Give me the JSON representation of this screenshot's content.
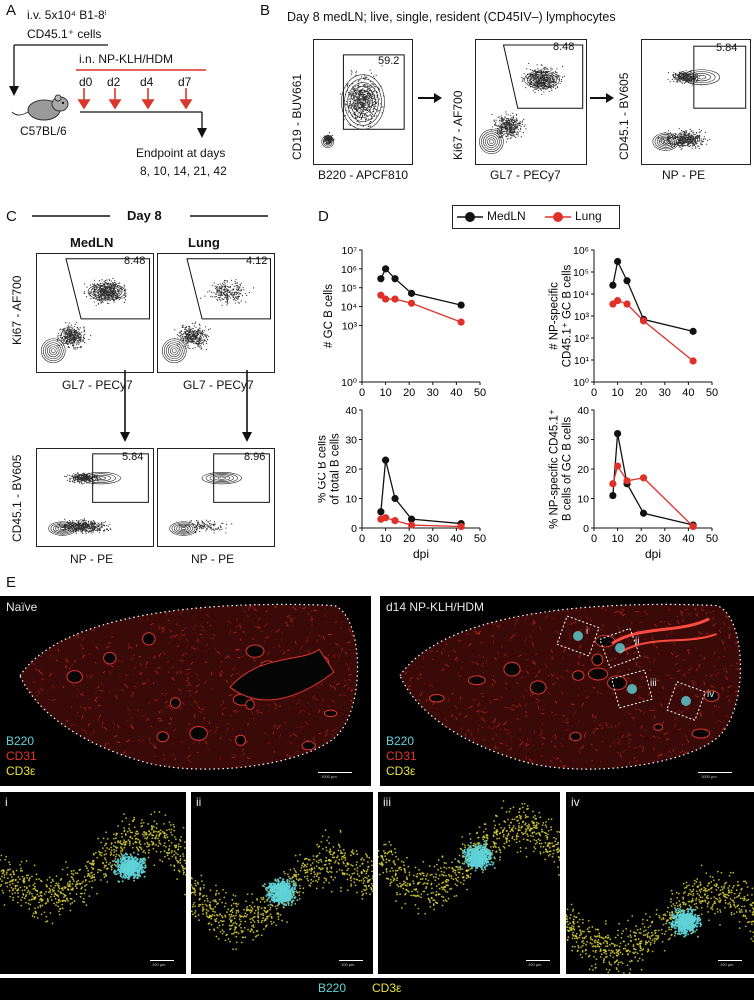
{
  "panels": {
    "a": "A",
    "b": "B",
    "c": "C",
    "d": "D",
    "e": "E"
  },
  "panel_a": {
    "iv_line1": "i.v. 5x10⁴ B1-8ⁱ",
    "iv_line2": "CD45.1⁺ cells",
    "in_label": "i.n. NP-KLH/HDM",
    "days": [
      "d0",
      "d2",
      "d4",
      "d7"
    ],
    "mouse": "C57BL/6",
    "endpoint1": "Endpoint at days",
    "endpoint2": "8, 10, 14, 21, 42"
  },
  "panel_b": {
    "title": "Day 8 medLN; live, single, resident (CD45IV–) lymphocytes",
    "plots": [
      {
        "ylabel": "CD19 - BUV661",
        "xlabel": "B220 - APCF810",
        "gate": "59.2"
      },
      {
        "ylabel": "Ki67 - AF700",
        "xlabel": "GL7 - PECy7",
        "gate": "8.48"
      },
      {
        "ylabel": "CD45.1 - BV605",
        "xlabel": "NP - PE",
        "gate": "5.84"
      }
    ]
  },
  "panel_c": {
    "day": "Day 8",
    "col1": "MedLN",
    "col2": "Lung",
    "top_ylabel": "Ki67 - AF700",
    "top_xlabel": "GL7 - PECy7",
    "bot_ylabel": "CD45.1 - BV605",
    "bot_xlabel": "NP - PE",
    "gates": [
      "8.48",
      "4.12",
      "5.84",
      "8.96"
    ]
  },
  "panel_d": {
    "legend": [
      "MedLN",
      "Lung"
    ],
    "colors": {
      "medln": "#111111",
      "lung": "#e0302a"
    },
    "xlabel": "dpi",
    "ylabels": [
      [
        "# GC B cells"
      ],
      [
        "# NP-specific",
        "CD45.1⁺ GC B cells"
      ],
      [
        "% GC B cells",
        "of total B cells"
      ],
      [
        "% NP-specific CD45.1⁺",
        "B cells of GC B cells"
      ]
    ]
  },
  "chart_data": [
    {
      "type": "line",
      "ylabel": "# GC B cells",
      "xlabel": "",
      "x": [
        8,
        10,
        14,
        21,
        42
      ],
      "yscale": "log",
      "ylim": [
        1,
        10000000
      ],
      "yticks": [
        "10⁰",
        "10³",
        "10⁴",
        "10⁵",
        "10⁶",
        "10⁷"
      ],
      "xticks": [
        0,
        10,
        20,
        30,
        40,
        50
      ],
      "series": [
        {
          "name": "MedLN",
          "values": [
            300000,
            1000000,
            300000,
            50000,
            12000
          ]
        },
        {
          "name": "Lung",
          "values": [
            40000,
            25000,
            25000,
            15000,
            1500
          ]
        }
      ]
    },
    {
      "type": "line",
      "ylabel": "# NP-specific CD45.1⁺ GC B cells",
      "xlabel": "",
      "x": [
        8,
        10,
        14,
        21,
        42
      ],
      "yscale": "log",
      "ylim": [
        1,
        1000000
      ],
      "yticks": [
        "10⁰",
        "10¹",
        "10²",
        "10³",
        "10⁴",
        "10⁵",
        "10⁶"
      ],
      "xticks": [
        0,
        10,
        20,
        30,
        40,
        50
      ],
      "series": [
        {
          "name": "MedLN",
          "values": [
            25000,
            300000,
            40000,
            700,
            200
          ]
        },
        {
          "name": "Lung",
          "values": [
            3500,
            5000,
            3500,
            600,
            9
          ]
        }
      ]
    },
    {
      "type": "line",
      "ylabel": "% GC B cells of total B cells",
      "xlabel": "dpi",
      "x": [
        8,
        10,
        14,
        21,
        42
      ],
      "ylim": [
        0,
        40
      ],
      "yticks": [
        "0",
        "10",
        "20",
        "30",
        "40"
      ],
      "xticks": [
        0,
        10,
        20,
        30,
        40,
        50
      ],
      "series": [
        {
          "name": "MedLN",
          "values": [
            5.5,
            23,
            10,
            3,
            1.5
          ]
        },
        {
          "name": "Lung",
          "values": [
            3,
            3.5,
            2.5,
            1,
            0.5
          ]
        }
      ]
    },
    {
      "type": "line",
      "ylabel": "% NP-specific CD45.1⁺ B cells of GC B cells",
      "xlabel": "dpi",
      "x": [
        8,
        10,
        14,
        21,
        42
      ],
      "ylim": [
        0,
        40
      ],
      "yticks": [
        "0",
        "10",
        "20",
        "30",
        "40"
      ],
      "xticks": [
        0,
        10,
        20,
        30,
        40,
        50
      ],
      "series": [
        {
          "name": "MedLN",
          "values": [
            11,
            32,
            15,
            5,
            1
          ]
        },
        {
          "name": "Lung",
          "values": [
            15,
            21,
            16,
            17,
            0.5
          ]
        }
      ]
    }
  ],
  "panel_e": {
    "left_title": "Naïve",
    "right_title": "d14 NP-KLH/HDM",
    "stains": [
      "B220",
      "CD31",
      "CD3ε"
    ],
    "stain_colors": [
      "#5fd3d8",
      "#e8332a",
      "#e8e23a"
    ],
    "rois": [
      "i",
      "ii",
      "iii",
      "iv"
    ],
    "scalebar_big": "1000 µm",
    "scalebar_small": "100 µm",
    "bottom_legend": [
      "B220",
      "CD3ε"
    ]
  }
}
